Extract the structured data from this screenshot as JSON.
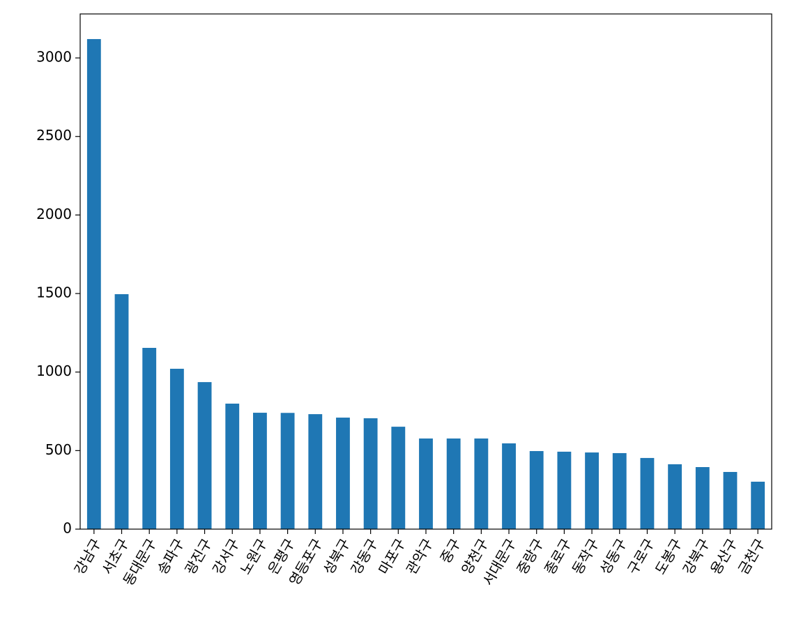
{
  "chart_data": {
    "type": "bar",
    "categories": [
      "강남구",
      "서초구",
      "동대문구",
      "송파구",
      "광진구",
      "강서구",
      "노원구",
      "은평구",
      "영등포구",
      "성북구",
      "강동구",
      "마포구",
      "관악구",
      "중구",
      "양천구",
      "서대문구",
      "중랑구",
      "종로구",
      "동작구",
      "성동구",
      "구로구",
      "도봉구",
      "강북구",
      "용산구",
      "금천구"
    ],
    "values": [
      3120,
      1496,
      1154,
      1021,
      936,
      799,
      741,
      740,
      732,
      710,
      706,
      652,
      577,
      577,
      577,
      546,
      497,
      493,
      488,
      484,
      453,
      413,
      395,
      364,
      302
    ],
    "color": "#1f77b4",
    "ylim": [
      0,
      3280
    ],
    "yticks": [
      0,
      500,
      1000,
      1500,
      2000,
      2500,
      3000
    ],
    "grid": false
  }
}
